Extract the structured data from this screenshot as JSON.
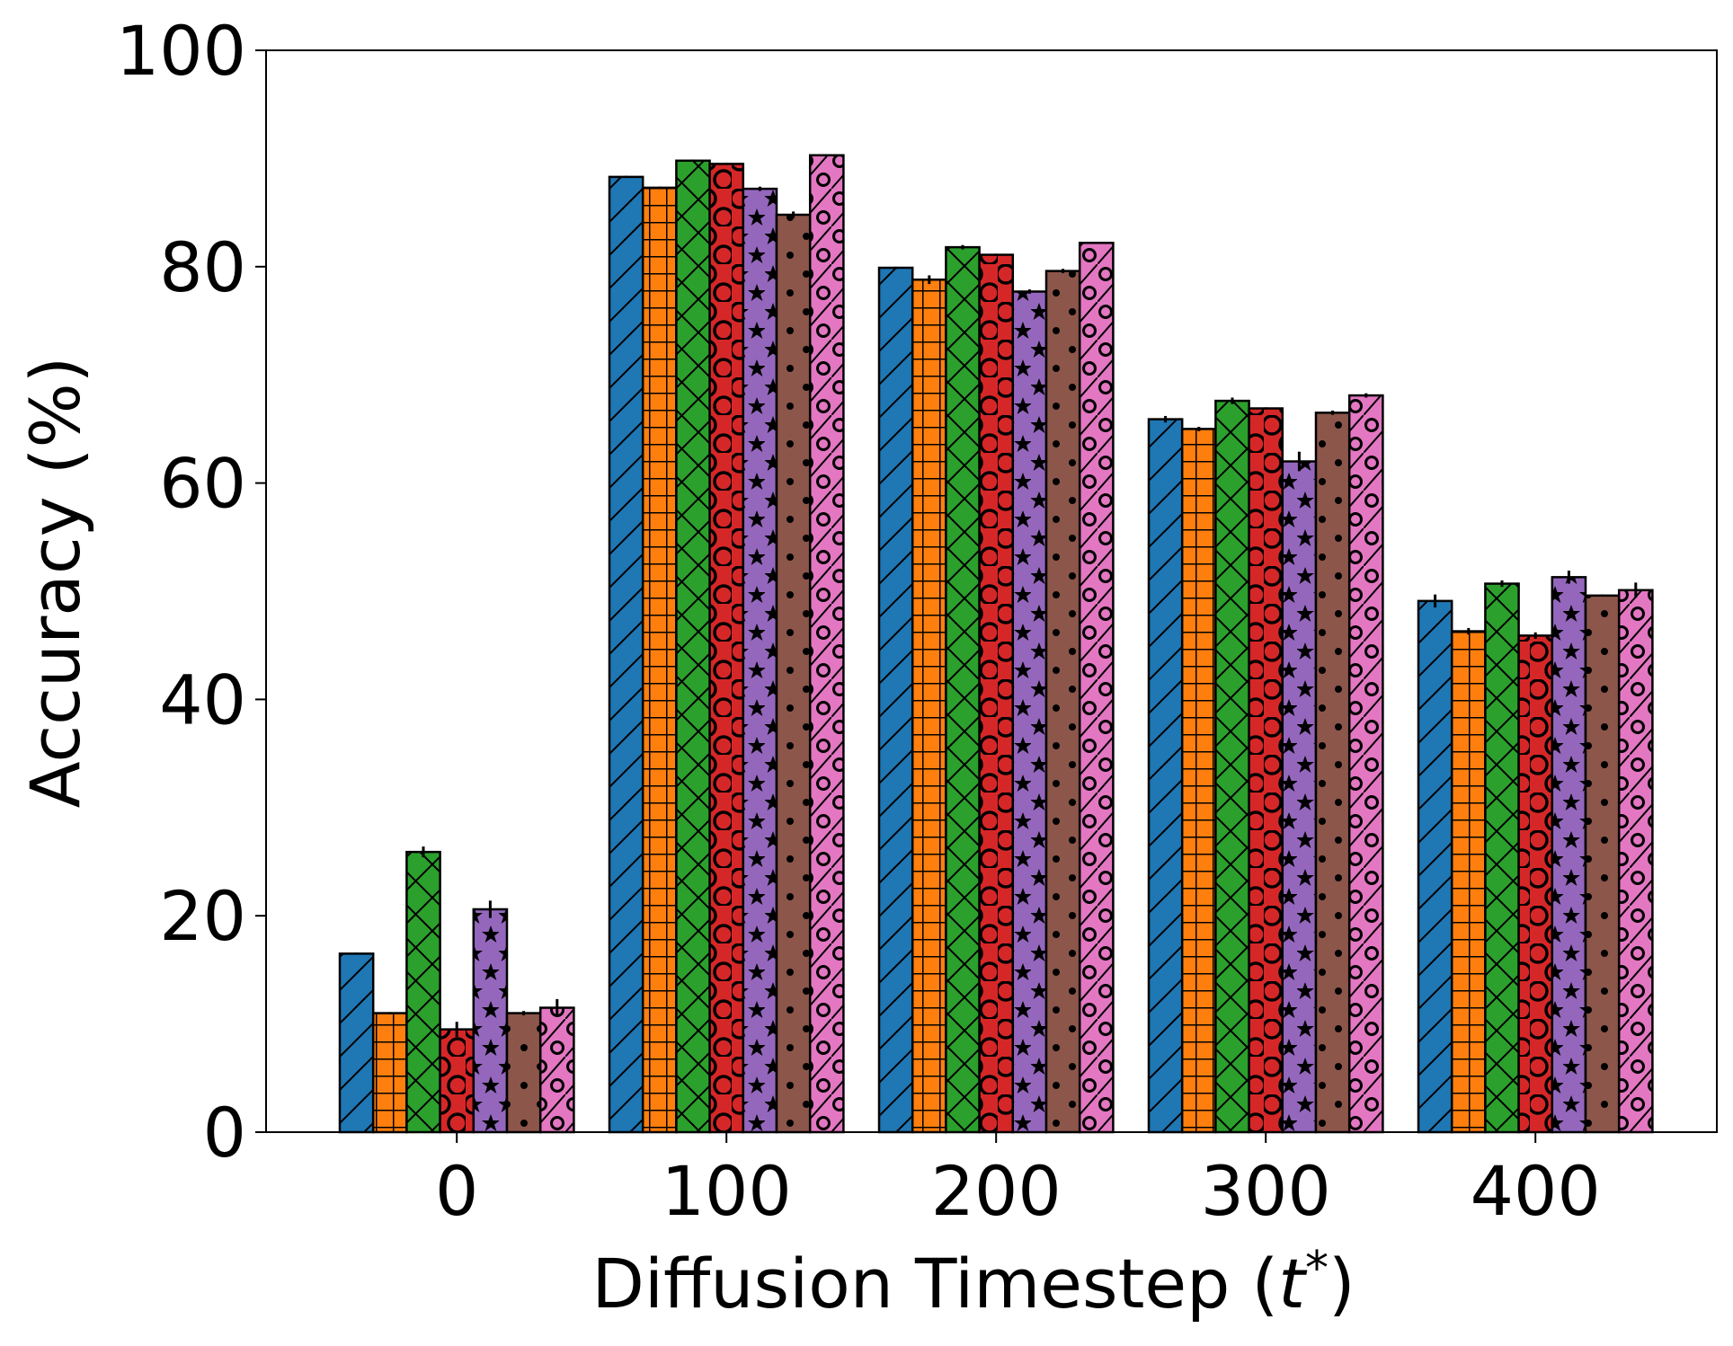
{
  "chart_data": {
    "type": "bar",
    "xlabel": "Diffusion Timestep (t*)",
    "xlabel_parts": {
      "text": "Diffusion Timestep (",
      "var": "t",
      "sup": "*",
      "close": ")"
    },
    "ylabel": "Accuracy (%)",
    "ylim": [
      0,
      100
    ],
    "yticks": [
      "0",
      "20",
      "40",
      "60",
      "80",
      "100"
    ],
    "categories": [
      "0",
      "100",
      "200",
      "300",
      "400"
    ],
    "grid": false,
    "legend": "none",
    "series": [
      {
        "color": "#1f77b4",
        "hatch": "diagonal",
        "values": [
          16.5,
          88.3,
          79.9,
          65.9,
          49.1
        ],
        "errors": [
          0.1,
          0.1,
          0.1,
          0.3,
          0.6
        ]
      },
      {
        "color": "#ff7f0e",
        "hatch": "grid",
        "values": [
          11.0,
          87.3,
          78.8,
          65.0,
          46.3
        ],
        "errors": [
          0.1,
          0.1,
          0.4,
          0.2,
          0.3
        ]
      },
      {
        "color": "#2ca02c",
        "hatch": "cross",
        "values": [
          25.9,
          89.8,
          81.8,
          67.6,
          50.7
        ],
        "errors": [
          0.5,
          0.1,
          0.2,
          0.3,
          0.3
        ]
      },
      {
        "color": "#d62728",
        "hatch": "circles",
        "values": [
          9.5,
          89.5,
          81.1,
          66.9,
          45.9
        ],
        "errors": [
          0.7,
          0.1,
          0.1,
          0.1,
          0.3
        ]
      },
      {
        "color": "#9467bd",
        "hatch": "stars",
        "values": [
          20.6,
          87.2,
          77.7,
          62.0,
          51.3
        ],
        "errors": [
          0.8,
          0.2,
          0.2,
          0.9,
          0.6
        ]
      },
      {
        "color": "#8c564b",
        "hatch": "dots",
        "values": [
          11.0,
          84.8,
          79.6,
          66.5,
          49.6
        ],
        "errors": [
          0.2,
          0.3,
          0.2,
          0.2,
          0.1
        ]
      },
      {
        "color": "#e377c2",
        "hatch": "slash-ring",
        "values": [
          11.5,
          90.3,
          82.2,
          68.1,
          50.1
        ],
        "errors": [
          0.8,
          0.1,
          0.1,
          0.2,
          0.7
        ]
      }
    ]
  }
}
